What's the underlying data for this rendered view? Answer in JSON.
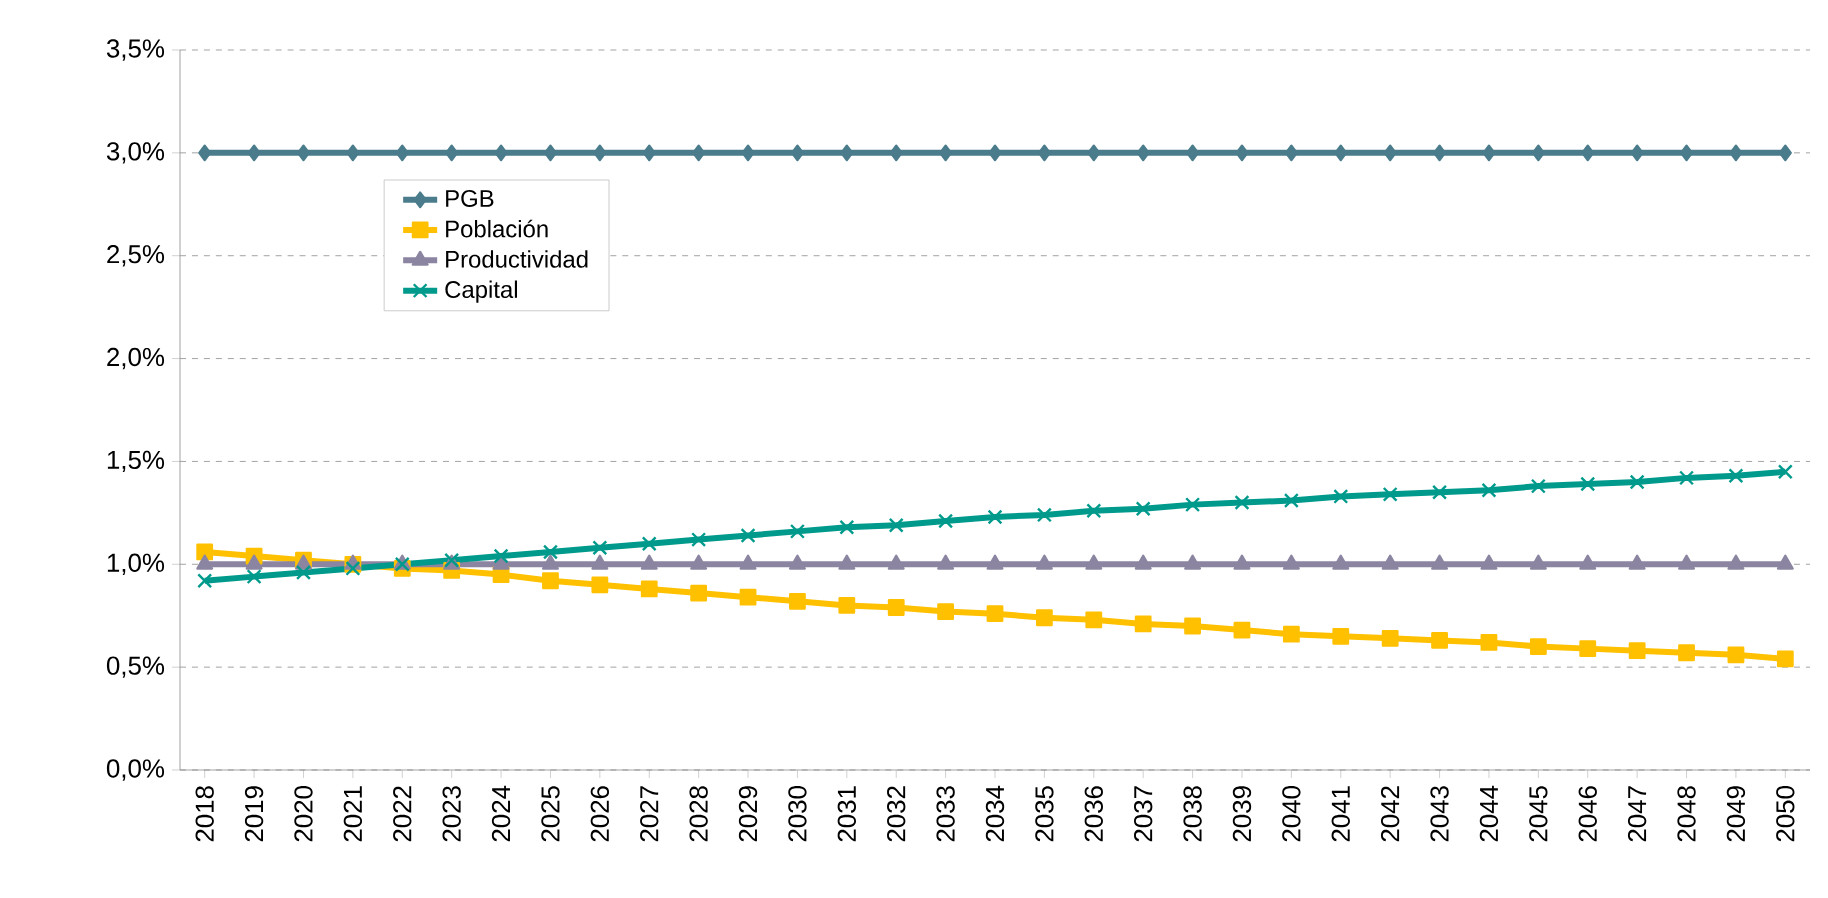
{
  "chart_data": {
    "type": "line",
    "categories": [
      "2018",
      "2019",
      "2020",
      "2021",
      "2022",
      "2023",
      "2024",
      "2025",
      "2026",
      "2027",
      "2028",
      "2029",
      "2030",
      "2031",
      "2032",
      "2033",
      "2034",
      "2035",
      "2036",
      "2037",
      "2038",
      "2039",
      "2040",
      "2041",
      "2042",
      "2043",
      "2044",
      "2045",
      "2046",
      "2047",
      "2048",
      "2049",
      "2050"
    ],
    "series": [
      {
        "name": "PGB",
        "color": "#4a7c8c",
        "marker": "diamond",
        "values": [
          3.0,
          3.0,
          3.0,
          3.0,
          3.0,
          3.0,
          3.0,
          3.0,
          3.0,
          3.0,
          3.0,
          3.0,
          3.0,
          3.0,
          3.0,
          3.0,
          3.0,
          3.0,
          3.0,
          3.0,
          3.0,
          3.0,
          3.0,
          3.0,
          3.0,
          3.0,
          3.0,
          3.0,
          3.0,
          3.0,
          3.0,
          3.0,
          3.0
        ]
      },
      {
        "name": "Población",
        "color": "#ffc000",
        "marker": "square",
        "values": [
          1.06,
          1.04,
          1.02,
          1.0,
          0.98,
          0.97,
          0.95,
          0.92,
          0.9,
          0.88,
          0.86,
          0.84,
          0.82,
          0.8,
          0.79,
          0.77,
          0.76,
          0.74,
          0.73,
          0.71,
          0.7,
          0.68,
          0.66,
          0.65,
          0.64,
          0.63,
          0.62,
          0.6,
          0.59,
          0.58,
          0.57,
          0.56,
          0.54
        ]
      },
      {
        "name": "Productividad",
        "color": "#8b85a1",
        "marker": "triangle",
        "values": [
          1.0,
          1.0,
          1.0,
          1.0,
          1.0,
          1.0,
          1.0,
          1.0,
          1.0,
          1.0,
          1.0,
          1.0,
          1.0,
          1.0,
          1.0,
          1.0,
          1.0,
          1.0,
          1.0,
          1.0,
          1.0,
          1.0,
          1.0,
          1.0,
          1.0,
          1.0,
          1.0,
          1.0,
          1.0,
          1.0,
          1.0,
          1.0,
          1.0
        ]
      },
      {
        "name": "Capital",
        "color": "#009a8c",
        "marker": "cross",
        "values": [
          0.92,
          0.94,
          0.96,
          0.98,
          1.0,
          1.02,
          1.04,
          1.06,
          1.08,
          1.1,
          1.12,
          1.14,
          1.16,
          1.18,
          1.19,
          1.21,
          1.23,
          1.24,
          1.26,
          1.27,
          1.29,
          1.3,
          1.31,
          1.33,
          1.34,
          1.35,
          1.36,
          1.38,
          1.39,
          1.4,
          1.42,
          1.43,
          1.45
        ]
      }
    ],
    "ylim": [
      0,
      3.5
    ],
    "yticks": [
      {
        "value": 0,
        "label": "0,0%"
      },
      {
        "value": 0.5,
        "label": "0,5%"
      },
      {
        "value": 1,
        "label": "1,0%"
      },
      {
        "value": 1.5,
        "label": "1,5%"
      },
      {
        "value": 2,
        "label": "2,0%"
      },
      {
        "value": 2.5,
        "label": "2,5%"
      },
      {
        "value": 3,
        "label": "3,0%"
      },
      {
        "value": 3.5,
        "label": "3,5%"
      }
    ],
    "grid": "y",
    "legend": "top left",
    "line_style": "solid"
  }
}
